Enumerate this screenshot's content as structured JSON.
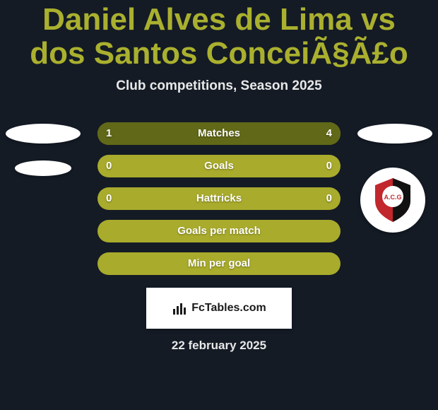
{
  "colors": {
    "background": "#141b25",
    "title": "#aab02e",
    "subtitle": "#e8e8e8",
    "row_base": "#a9ab2c",
    "row_fill": "#616817",
    "stat_text": "#ffffff",
    "stat_label_fontsize": 15,
    "stat_val_fontsize": 15,
    "title_fontsize": 44,
    "subtitle_fontsize": 19,
    "date_fontsize": 17,
    "badge_red": "#c1272d",
    "badge_black": "#111111"
  },
  "header": {
    "title": "Daniel Alves de Lima vs dos Santos ConceiÃ§Ã£o",
    "subtitle": "Club competitions, Season 2025"
  },
  "stats": {
    "rows": [
      {
        "label": "Matches",
        "left": "1",
        "right": "4",
        "left_pct": 20,
        "right_pct": 80
      },
      {
        "label": "Goals",
        "left": "0",
        "right": "0",
        "left_pct": 0,
        "right_pct": 0
      },
      {
        "label": "Hattricks",
        "left": "0",
        "right": "0",
        "left_pct": 0,
        "right_pct": 0
      },
      {
        "label": "Goals per match",
        "left": "",
        "right": "",
        "left_pct": 0,
        "right_pct": 0
      },
      {
        "label": "Min per goal",
        "left": "",
        "right": "",
        "left_pct": 0,
        "right_pct": 0
      }
    ]
  },
  "footer": {
    "brand": "FcTables.com",
    "date": "22 february 2025"
  },
  "right_club": {
    "initials": "A.C.G"
  }
}
